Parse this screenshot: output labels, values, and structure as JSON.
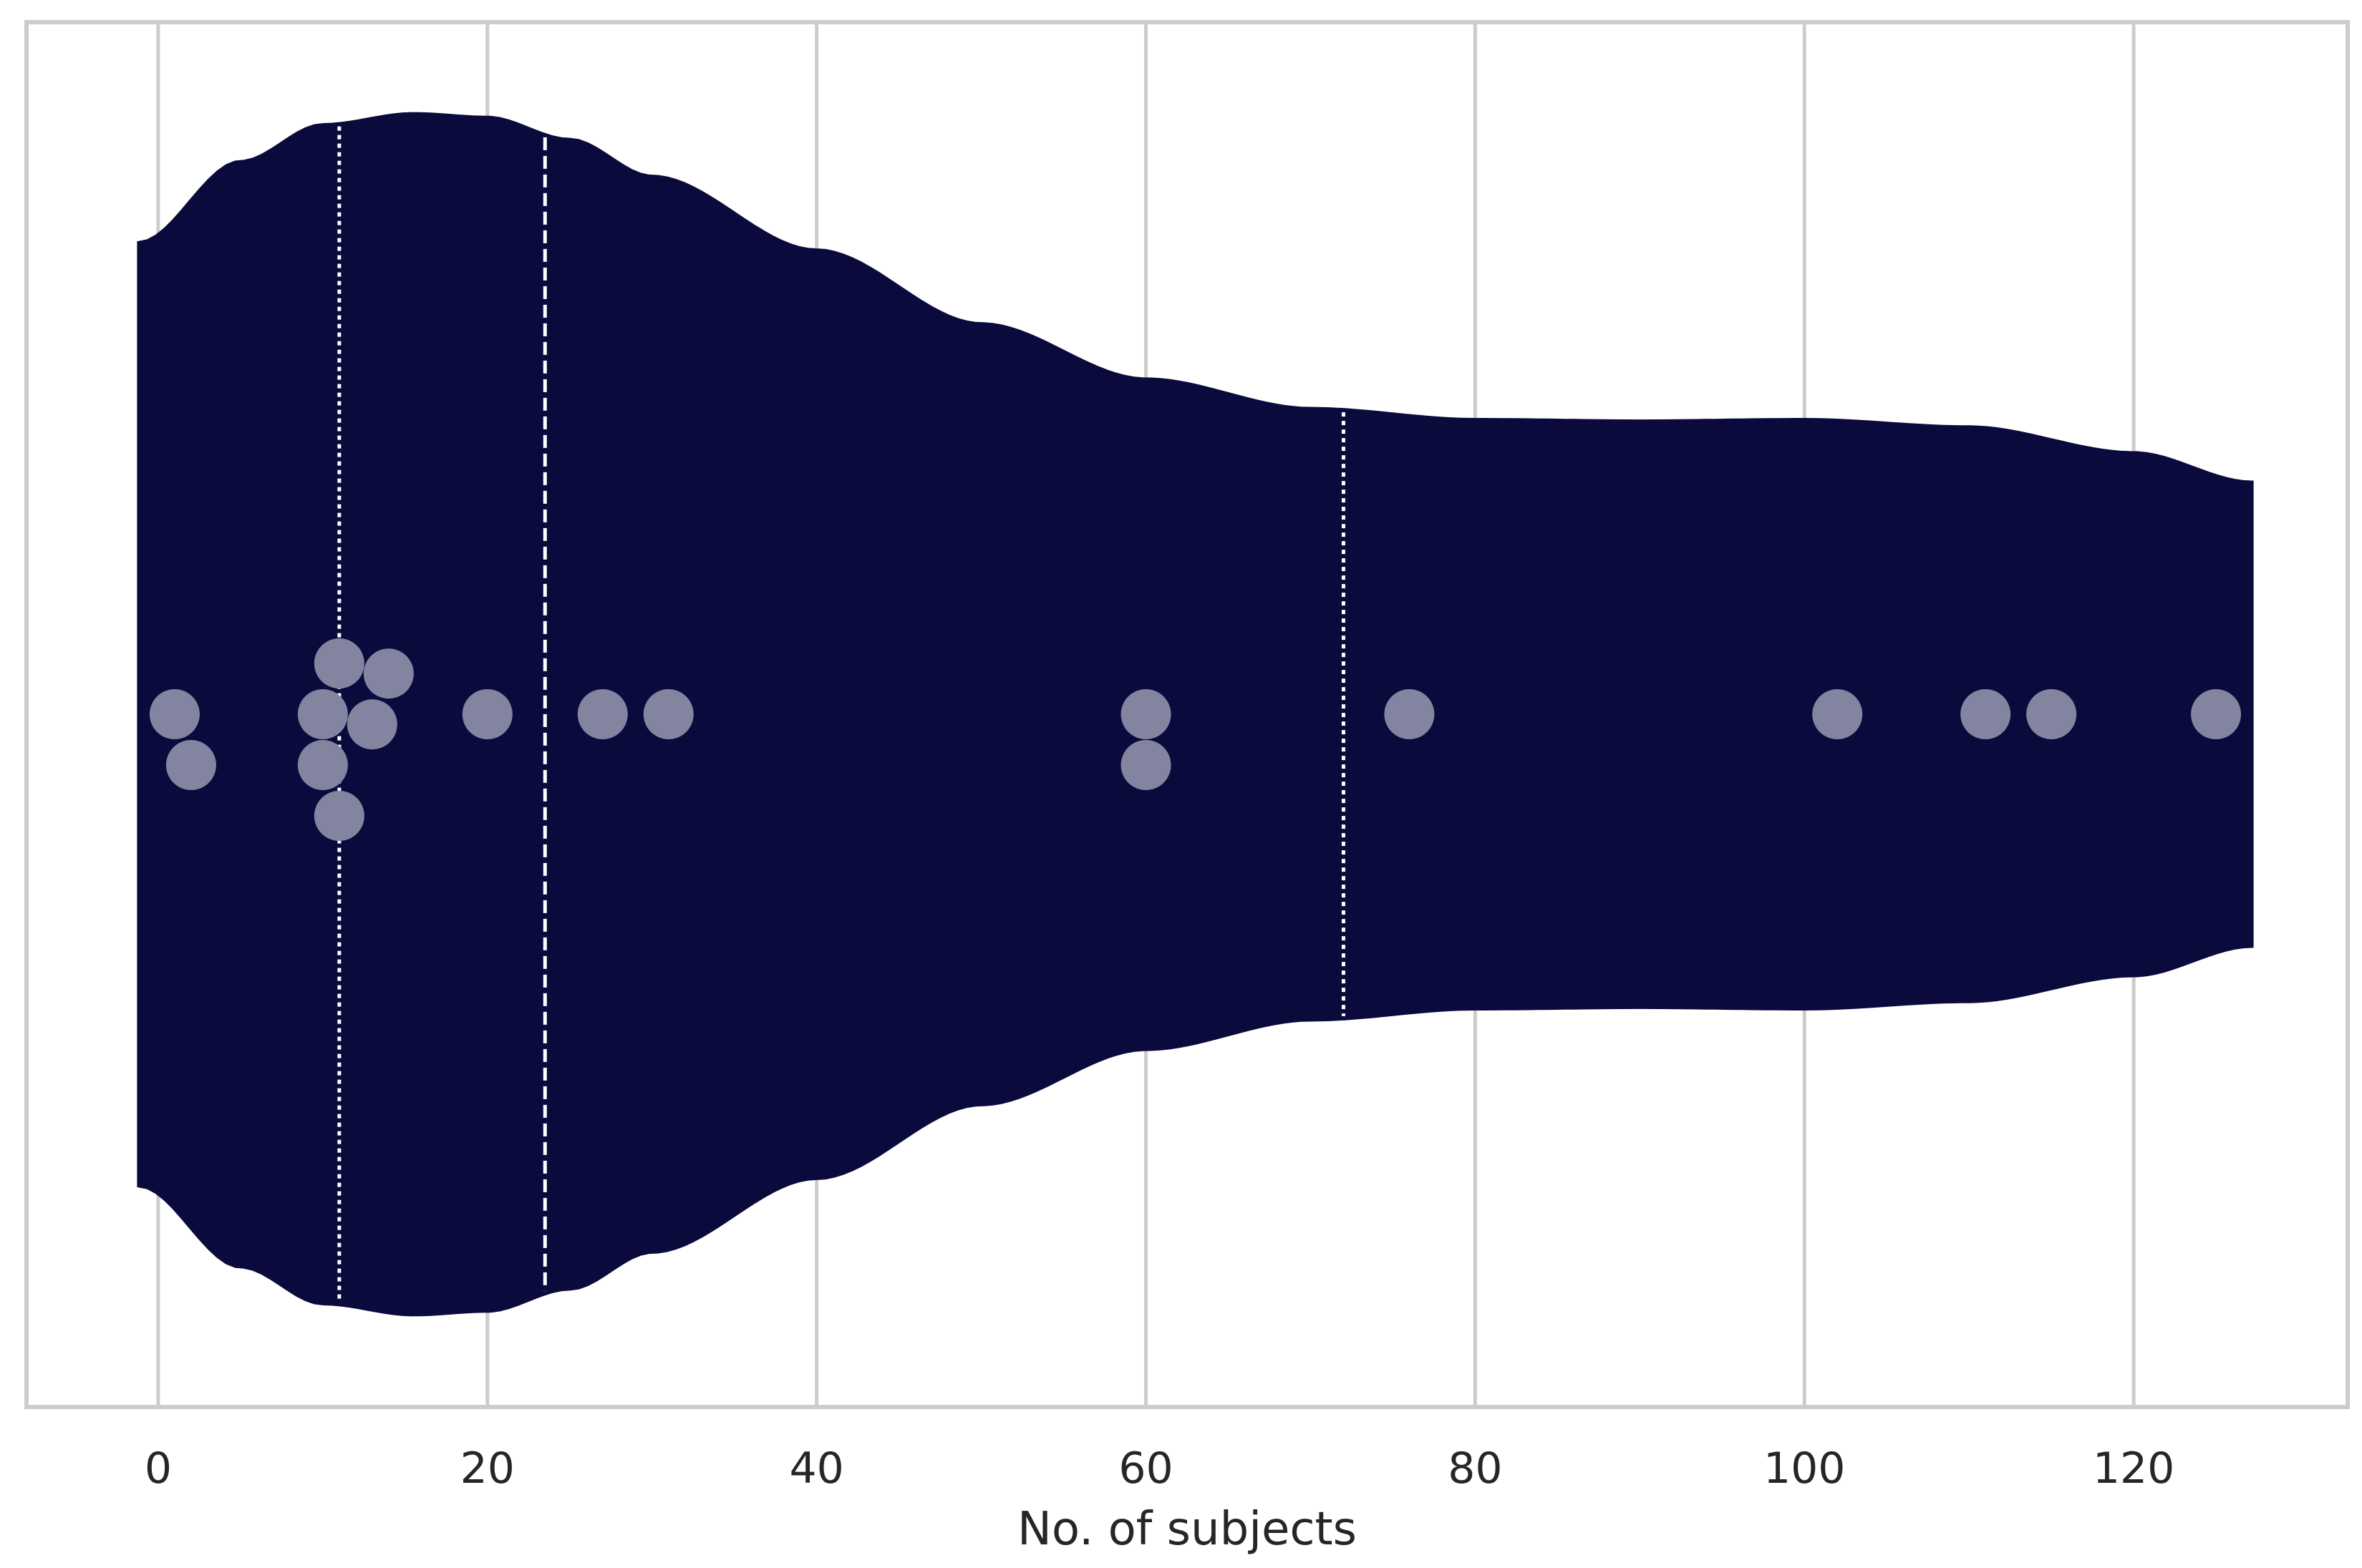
{
  "chart_data": {
    "type": "violin",
    "orientation": "horizontal",
    "title": "",
    "xlabel": "No. of subjects",
    "ylabel": "",
    "xlim": [
      -8,
      133
    ],
    "xticks": [
      0,
      20,
      40,
      60,
      80,
      100,
      120
    ],
    "xtick_labels": [
      "0",
      "20",
      "40",
      "60",
      "80",
      "100",
      "120"
    ],
    "grid": "vertical",
    "violin_color": "#0a0a3c",
    "point_color": "#8384a0",
    "quartile_line_color": "#ffffff",
    "violin_range": [
      -1.2,
      127.2
    ],
    "density_profile": [
      {
        "x": -1.2,
        "h": 0.64
      },
      {
        "x": 5,
        "h": 0.75
      },
      {
        "x": 10,
        "h": 0.8
      },
      {
        "x": 15.5,
        "h": 0.815
      },
      {
        "x": 20,
        "h": 0.81
      },
      {
        "x": 25,
        "h": 0.78
      },
      {
        "x": 30,
        "h": 0.73
      },
      {
        "x": 40,
        "h": 0.63
      },
      {
        "x": 50,
        "h": 0.53
      },
      {
        "x": 60,
        "h": 0.455
      },
      {
        "x": 70,
        "h": 0.415
      },
      {
        "x": 80,
        "h": 0.4
      },
      {
        "x": 90,
        "h": 0.398
      },
      {
        "x": 100,
        "h": 0.4
      },
      {
        "x": 110,
        "h": 0.39
      },
      {
        "x": 120,
        "h": 0.355
      },
      {
        "x": 127.2,
        "h": 0.315
      }
    ],
    "quartiles": {
      "q1": 11,
      "median": 23.5,
      "q3": 72
    },
    "points": [
      {
        "x": 1,
        "offset": 0
      },
      {
        "x": 2,
        "offset": 1
      },
      {
        "x": 10,
        "offset": 0
      },
      {
        "x": 10,
        "offset": 1
      },
      {
        "x": 11,
        "offset": -1
      },
      {
        "x": 11,
        "offset": 2
      },
      {
        "x": 13,
        "offset": 0.2
      },
      {
        "x": 14,
        "offset": -0.8
      },
      {
        "x": 20,
        "offset": 0
      },
      {
        "x": 27,
        "offset": 0
      },
      {
        "x": 31,
        "offset": 0
      },
      {
        "x": 60,
        "offset": 0
      },
      {
        "x": 60,
        "offset": 1
      },
      {
        "x": 76,
        "offset": 0
      },
      {
        "x": 102,
        "offset": 0
      },
      {
        "x": 111,
        "offset": 0
      },
      {
        "x": 115,
        "offset": 0
      },
      {
        "x": 125,
        "offset": 0
      }
    ]
  }
}
